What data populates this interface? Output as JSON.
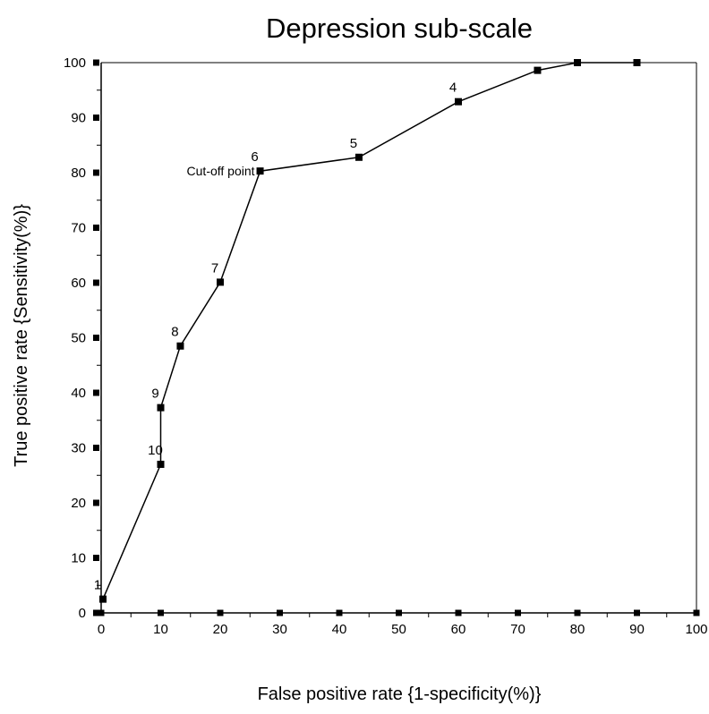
{
  "chart_data": {
    "type": "line",
    "title": "Depression sub-scale",
    "xlabel": "False positive rate {1-specificity(%)}",
    "ylabel": "True positive rate {Sensitivity(%)}",
    "xlim": [
      0,
      100
    ],
    "ylim": [
      0,
      100
    ],
    "x_ticks": [
      0,
      10,
      20,
      30,
      40,
      50,
      60,
      70,
      80,
      90,
      100
    ],
    "y_ticks": [
      0,
      10,
      20,
      30,
      40,
      50,
      60,
      70,
      80,
      90,
      100
    ],
    "grid": false,
    "series": [
      {
        "color": "#000000",
        "points": [
          {
            "x": 0.3,
            "y": 2.5,
            "label": "1"
          },
          {
            "x": 10.0,
            "y": 27.0,
            "label": "10"
          },
          {
            "x": 10.0,
            "y": 37.3,
            "label": "9"
          },
          {
            "x": 13.3,
            "y": 48.5,
            "label": "8"
          },
          {
            "x": 20.0,
            "y": 60.1,
            "label": "7"
          },
          {
            "x": 26.7,
            "y": 80.3,
            "label": "6"
          },
          {
            "x": 43.3,
            "y": 82.8,
            "label": "5"
          },
          {
            "x": 60.0,
            "y": 92.9,
            "label": "4"
          },
          {
            "x": 73.3,
            "y": 98.6,
            "label": ""
          },
          {
            "x": 80.0,
            "y": 100.0,
            "label": ""
          },
          {
            "x": 90.0,
            "y": 100.0,
            "label": ""
          }
        ]
      }
    ],
    "annotations": [
      {
        "text": "Cut-off point",
        "x": 26.7,
        "y": 80.3
      }
    ]
  }
}
